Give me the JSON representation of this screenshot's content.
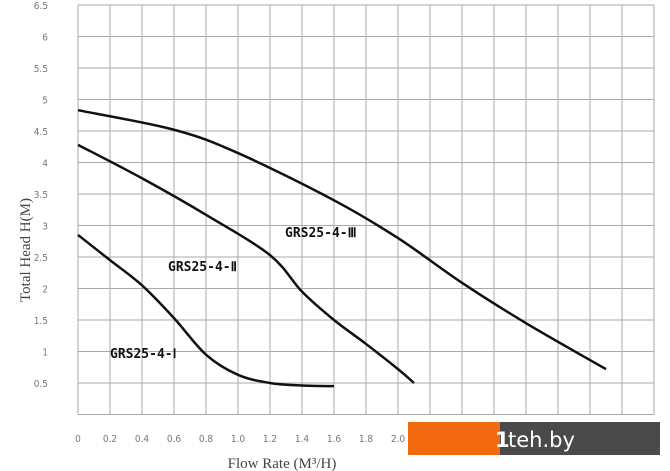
{
  "chart_data": {
    "type": "line",
    "title": "",
    "xlabel": "Flow Rate (M³/H)",
    "ylabel": "Total Head H(M)",
    "xlim": [
      0,
      3.6
    ],
    "ylim": [
      0,
      6.5
    ],
    "grid": true,
    "x_ticks": [
      "0",
      "0.2",
      "0.4",
      "0.6",
      "0.8",
      "1.0",
      "1.2",
      "1.4",
      "1.6",
      "1.8",
      "2.0"
    ],
    "y_ticks": [
      "0.5",
      "1",
      "1.5",
      "2",
      "2.5",
      "3",
      "3.5",
      "4",
      "4.5",
      "5",
      "5.5",
      "6",
      "6.5"
    ],
    "series": [
      {
        "name": "GRS25-4-Ⅰ",
        "x": [
          0,
          0.2,
          0.4,
          0.6,
          0.8,
          1.0,
          1.2,
          1.4,
          1.6
        ],
        "y": [
          2.85,
          2.45,
          2.05,
          1.53,
          0.95,
          0.63,
          0.5,
          0.46,
          0.45
        ]
      },
      {
        "name": "GRS25-4-Ⅱ",
        "x": [
          0,
          0.4,
          0.8,
          1.2,
          1.4,
          1.6,
          1.8,
          2.0,
          2.1
        ],
        "y": [
          4.28,
          3.75,
          3.17,
          2.53,
          1.95,
          1.5,
          1.12,
          0.72,
          0.5
        ]
      },
      {
        "name": "GRS25-4-Ⅲ",
        "x": [
          0,
          0.6,
          1.0,
          1.6,
          2.0,
          2.4,
          2.8,
          3.3
        ],
        "y": [
          4.83,
          4.52,
          4.15,
          3.4,
          2.8,
          2.09,
          1.45,
          0.72
        ]
      }
    ]
  },
  "watermark": {
    "text": "1teh.by",
    "accent": "#f26a10",
    "dark": "#4a4a4a"
  }
}
